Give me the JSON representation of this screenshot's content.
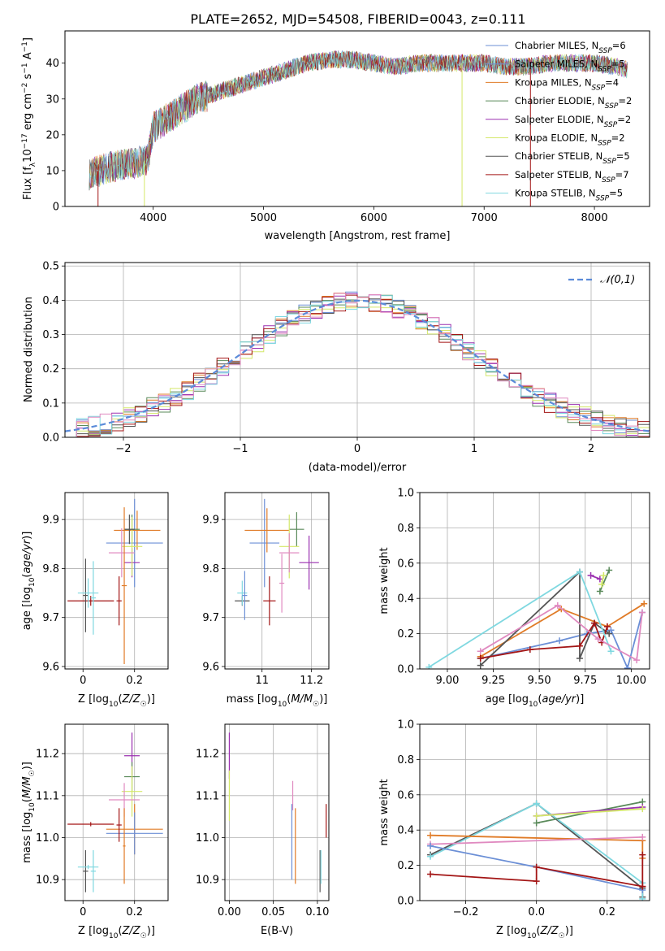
{
  "figure_title": "PLATE=2652, MJD=54508, FIBERID=0043, z=0.111",
  "colors": {
    "Chabrier MILES": "#6b8fd6",
    "Salpeter MILES": "#6b8fd6",
    "Kroupa MILES": "#e07b27",
    "Chabrier ELODIE": "#5a8a5a",
    "Salpeter ELODIE": "#9b30b0",
    "Kroupa ELODIE": "#d4e86a",
    "Chabrier STELIB": "#555555",
    "Salpeter STELIB": "#a31515",
    "Kroupa STELIB": "#7fd8e0",
    "pink": "#e08ac0",
    "gaussian": "#5b8bd9"
  },
  "chart_data": [
    {
      "id": "spectrum",
      "type": "line",
      "title": "PLATE=2652, MJD=54508, FIBERID=0043, z=0.111",
      "xlabel": "wavelength [Angstrom, rest frame]",
      "ylabel": "Flux [f_λ10^-17 erg cm^-2 s^-1 A^-1]",
      "xlim": [
        3200,
        8500
      ],
      "ylim": [
        0,
        49
      ],
      "xticks": [
        4000,
        5000,
        6000,
        7000,
        8000
      ],
      "yticks": [
        0,
        10,
        20,
        30,
        40
      ],
      "legend": [
        {
          "label": "Chabrier MILES, N_SSP=6",
          "color": "#6b8fd6"
        },
        {
          "label": "Salpeter MILES, N_SSP=5",
          "color": "#6b8fd6"
        },
        {
          "label": "Kroupa MILES, N_SSP=4",
          "color": "#e07b27"
        },
        {
          "label": "Chabrier ELODIE, N_SSP=2",
          "color": "#5a8a5a"
        },
        {
          "label": "Salpeter ELODIE, N_SSP=2",
          "color": "#9b30b0"
        },
        {
          "label": "Kroupa ELODIE, N_SSP=2",
          "color": "#d4e86a"
        },
        {
          "label": "Chabrier STELIB, N_SSP=5",
          "color": "#555555"
        },
        {
          "label": "Salpeter STELIB, N_SSP=7",
          "color": "#a31515"
        },
        {
          "label": "Kroupa STELIB, N_SSP=5",
          "color": "#7fd8e0"
        }
      ],
      "continuum": [
        [
          3420,
          9
        ],
        [
          3600,
          11
        ],
        [
          3800,
          12
        ],
        [
          3950,
          13
        ],
        [
          4000,
          22
        ],
        [
          4200,
          26
        ],
        [
          4400,
          30
        ],
        [
          4600,
          32
        ],
        [
          4800,
          34
        ],
        [
          5000,
          36
        ],
        [
          5200,
          38
        ],
        [
          5400,
          40
        ],
        [
          5600,
          41
        ],
        [
          5800,
          41
        ],
        [
          6000,
          40
        ],
        [
          6200,
          39
        ],
        [
          6400,
          40
        ],
        [
          6600,
          40
        ],
        [
          6800,
          40
        ],
        [
          7000,
          40
        ],
        [
          7200,
          39
        ],
        [
          7400,
          39
        ],
        [
          7600,
          40
        ],
        [
          7800,
          40
        ],
        [
          8000,
          40
        ],
        [
          8200,
          39
        ],
        [
          8300,
          38
        ]
      ],
      "drops": [
        {
          "x": 3500,
          "color": "#a31515"
        },
        {
          "x": 3920,
          "color": "#d4e86a"
        },
        {
          "x": 6800,
          "color": "#d4e86a"
        },
        {
          "x": 7420,
          "color": "#a31515"
        }
      ]
    },
    {
      "id": "residuals",
      "type": "bar",
      "xlabel": "(data-model)/error",
      "ylabel": "Normed distribution",
      "xlim": [
        -2.5,
        2.5
      ],
      "ylim": [
        0,
        0.51
      ],
      "xticks": [
        -2,
        -1,
        0,
        1,
        2
      ],
      "yticks": [
        0.0,
        0.1,
        0.2,
        0.3,
        0.4,
        0.5
      ],
      "series": [
        {
          "name": "𝒩(0,1)",
          "type": "gaussian",
          "mean": 0,
          "sigma": 1
        }
      ],
      "bin_width": 0.1,
      "histogram_colors": [
        "#6b8fd6",
        "#e07b27",
        "#5a8a5a",
        "#9b30b0",
        "#d4e86a",
        "#555555",
        "#a31515",
        "#7fd8e0",
        "#e08ac0"
      ]
    },
    {
      "id": "age_vs_Z",
      "type": "scatter",
      "xlabel": "Z [log10(Z/Z☉)]",
      "ylabel": "age  [log10(age/yr)]",
      "xlim": [
        -0.07,
        0.33
      ],
      "ylim": [
        9.595,
        9.955
      ],
      "xticks": [
        0.0,
        0.2
      ],
      "yticks": [
        9.6,
        9.7,
        9.8,
        9.9
      ],
      "points": [
        {
          "x": 0.2,
          "y": 9.852,
          "xerr": 0.11,
          "yerr": 0.09,
          "color": "#6b8fd6"
        },
        {
          "x": 0.21,
          "y": 9.878,
          "xerr": 0.09,
          "yerr": 0.04,
          "color": "#e07b27"
        },
        {
          "x": 0.19,
          "y": 9.88,
          "xerr": 0.03,
          "yerr": 0.03,
          "color": "#5a8a5a"
        },
        {
          "x": 0.19,
          "y": 9.812,
          "xerr": 0.03,
          "yerr": 0.03,
          "color": "#9b30b0"
        },
        {
          "x": 0.19,
          "y": 9.845,
          "xerr": 0.04,
          "yerr": 0.06,
          "color": "#d4e86a"
        },
        {
          "x": 0.18,
          "y": 9.88,
          "xerr": 0.02,
          "yerr": 0.03,
          "color": "#555555"
        },
        {
          "x": 0.15,
          "y": 9.832,
          "xerr": 0.05,
          "yerr": 0.05,
          "color": "#e08ac0"
        },
        {
          "x": 0.16,
          "y": 9.765,
          "xerr": 0.01,
          "yerr": 0.16,
          "color": "#e07b27"
        },
        {
          "x": 0.14,
          "y": 9.734,
          "xerr": 0.01,
          "yerr": 0.05,
          "color": "#a31515"
        },
        {
          "x": 0.03,
          "y": 9.734,
          "xerr": 0.09,
          "yerr": 0.01,
          "color": "#a31515"
        },
        {
          "x": 0.01,
          "y": 9.745,
          "xerr": 0.01,
          "yerr": 0.075,
          "color": "#555555"
        },
        {
          "x": 0.02,
          "y": 9.75,
          "xerr": 0.04,
          "yerr": 0.03,
          "color": "#7fd8e0"
        },
        {
          "x": 0.04,
          "y": 9.74,
          "xerr": 0.01,
          "yerr": 0.075,
          "color": "#7fd8e0"
        }
      ]
    },
    {
      "id": "age_vs_mass",
      "type": "scatter",
      "xlabel": "mass [log10(M/M☉)]",
      "ylabel": "",
      "xlim": [
        10.85,
        11.27
      ],
      "ylim": [
        9.595,
        9.955
      ],
      "xticks": [
        11.0,
        11.2
      ],
      "yticks": [
        9.6,
        9.7,
        9.8,
        9.9
      ],
      "points": [
        {
          "x": 11.01,
          "y": 9.852,
          "xerr": 0.06,
          "yerr": 0.09,
          "color": "#6b8fd6"
        },
        {
          "x": 11.02,
          "y": 9.878,
          "xerr": 0.09,
          "yerr": 0.045,
          "color": "#e07b27"
        },
        {
          "x": 11.14,
          "y": 9.88,
          "xerr": 0.03,
          "yerr": 0.035,
          "color": "#5a8a5a"
        },
        {
          "x": 11.19,
          "y": 9.812,
          "xerr": 0.04,
          "yerr": 0.055,
          "color": "#9b30b0"
        },
        {
          "x": 11.11,
          "y": 9.845,
          "xerr": 0.04,
          "yerr": 0.065,
          "color": "#d4e86a"
        },
        {
          "x": 11.11,
          "y": 9.832,
          "xerr": 0.04,
          "yerr": 0.04,
          "color": "#e08ac0"
        },
        {
          "x": 11.03,
          "y": 9.734,
          "xerr": 0.025,
          "yerr": 0.05,
          "color": "#a31515"
        },
        {
          "x": 11.08,
          "y": 9.77,
          "xerr": 0.01,
          "yerr": 0.06,
          "color": "#e08ac0"
        },
        {
          "x": 10.92,
          "y": 9.734,
          "xerr": 0.03,
          "yerr": 0.01,
          "color": "#555555"
        },
        {
          "x": 10.92,
          "y": 9.75,
          "xerr": 0.02,
          "yerr": 0.025,
          "color": "#7fd8e0"
        },
        {
          "x": 10.93,
          "y": 9.745,
          "xerr": 0.01,
          "yerr": 0.05,
          "color": "#6b8fd6"
        }
      ]
    },
    {
      "id": "massweight_vs_age",
      "type": "line",
      "xlabel": "age  [log10(age/yr)]",
      "ylabel": "mass weight",
      "xlim": [
        8.85,
        10.1
      ],
      "ylim": [
        0,
        1
      ],
      "xticks": [
        9.0,
        9.25,
        9.5,
        9.75,
        10.0
      ],
      "xticklabels": [
        "9.00",
        "9.25",
        "9.50",
        "9.75",
        "10.00"
      ],
      "yticks": [
        0.0,
        0.2,
        0.4,
        0.6,
        0.8,
        1.0
      ],
      "series": [
        {
          "color": "#6b8fd6",
          "x": [
            9.18,
            9.61,
            9.76,
            9.89,
            9.98,
            10.06
          ],
          "y": [
            0.06,
            0.16,
            0.2,
            0.22,
            0.005,
            0.32
          ]
        },
        {
          "color": "#e07b27",
          "x": [
            9.18,
            9.62,
            9.87,
            10.07
          ],
          "y": [
            0.07,
            0.34,
            0.24,
            0.37
          ]
        },
        {
          "color": "#5a8a5a",
          "x": [
            9.83,
            9.88
          ],
          "y": [
            0.44,
            0.56
          ]
        },
        {
          "color": "#9b30b0",
          "x": [
            9.78,
            9.83
          ],
          "y": [
            0.53,
            0.51
          ]
        },
        {
          "color": "#d4e86a",
          "x": [
            9.84,
            9.85
          ],
          "y": [
            0.48,
            0.53
          ]
        },
        {
          "color": "#555555",
          "x": [
            9.18,
            9.72,
            9.72,
            9.8,
            9.88
          ],
          "y": [
            0.02,
            0.55,
            0.06,
            0.26,
            0.2
          ]
        },
        {
          "color": "#a31515",
          "x": [
            9.18,
            9.45,
            9.72,
            9.8,
            9.84,
            9.87
          ],
          "y": [
            0.06,
            0.11,
            0.13,
            0.26,
            0.15,
            0.24
          ]
        },
        {
          "color": "#7fd8e0",
          "x": [
            8.9,
            9.72,
            9.89
          ],
          "y": [
            0.01,
            0.55,
            0.1
          ]
        },
        {
          "color": "#e08ac0",
          "x": [
            9.18,
            9.6,
            9.82,
            10.03,
            10.06
          ],
          "y": [
            0.1,
            0.36,
            0.17,
            0.05,
            0.32
          ]
        }
      ]
    },
    {
      "id": "mass_vs_Z",
      "type": "scatter",
      "xlabel": "Z [log10(Z/Z☉)]",
      "ylabel": "mass [log10(M/M☉)]",
      "xlim": [
        -0.07,
        0.33
      ],
      "ylim": [
        10.85,
        11.27
      ],
      "xticks": [
        0.0,
        0.2
      ],
      "yticks": [
        10.9,
        11.0,
        11.1,
        11.2
      ],
      "points": [
        {
          "x": 0.19,
          "y": 11.195,
          "xerr": 0.03,
          "yerr": 0.055,
          "color": "#9b30b0"
        },
        {
          "x": 0.19,
          "y": 11.145,
          "xerr": 0.03,
          "yerr": 0.035,
          "color": "#5a8a5a"
        },
        {
          "x": 0.19,
          "y": 11.11,
          "xerr": 0.04,
          "yerr": 0.06,
          "color": "#d4e86a"
        },
        {
          "x": 0.16,
          "y": 11.09,
          "xerr": 0.06,
          "yerr": 0.04,
          "color": "#e08ac0"
        },
        {
          "x": 0.2,
          "y": 11.02,
          "xerr": 0.11,
          "yerr": 0.06,
          "color": "#e07b27"
        },
        {
          "x": 0.2,
          "y": 11.01,
          "xerr": 0.11,
          "yerr": 0.05,
          "color": "#6b8fd6"
        },
        {
          "x": 0.16,
          "y": 10.98,
          "xerr": 0.005,
          "yerr": 0.09,
          "color": "#e07b27"
        },
        {
          "x": 0.14,
          "y": 11.03,
          "xerr": 0.01,
          "yerr": 0.04,
          "color": "#a31515"
        },
        {
          "x": 0.03,
          "y": 11.032,
          "xerr": 0.09,
          "yerr": 0.005,
          "color": "#a31515"
        },
        {
          "x": 0.01,
          "y": 10.92,
          "xerr": 0.01,
          "yerr": 0.05,
          "color": "#555555"
        },
        {
          "x": 0.02,
          "y": 10.93,
          "xerr": 0.04,
          "yerr": 0.005,
          "color": "#7fd8e0"
        },
        {
          "x": 0.04,
          "y": 10.92,
          "xerr": 0.01,
          "yerr": 0.05,
          "color": "#7fd8e0"
        }
      ]
    },
    {
      "id": "mass_vs_ebv",
      "type": "scatter",
      "xlabel": "E(B-V)",
      "ylabel": "",
      "xlim": [
        -0.005,
        0.113
      ],
      "ylim": [
        10.85,
        11.27
      ],
      "xticks": [
        0.0,
        0.05,
        0.1
      ],
      "xticklabels": [
        "0.00",
        "0.05",
        "0.10"
      ],
      "yticks": [
        10.9,
        11.0,
        11.1,
        11.2
      ],
      "points": [
        {
          "x": 0.0,
          "y": 11.195,
          "xerr": 0,
          "yerr": 0.055,
          "color": "#9b30b0"
        },
        {
          "x": 0.0,
          "y": 11.1,
          "xerr": 0,
          "yerr": 0.06,
          "color": "#d4e86a"
        },
        {
          "x": 0.072,
          "y": 11.1,
          "xerr": 0,
          "yerr": 0.035,
          "color": "#e08ac0"
        },
        {
          "x": 0.071,
          "y": 10.99,
          "xerr": 0,
          "yerr": 0.09,
          "color": "#6b8fd6"
        },
        {
          "x": 0.075,
          "y": 10.98,
          "xerr": 0,
          "yerr": 0.09,
          "color": "#e07b27"
        },
        {
          "x": 0.103,
          "y": 10.92,
          "xerr": 0,
          "yerr": 0.05,
          "color": "#555555"
        },
        {
          "x": 0.104,
          "y": 10.93,
          "xerr": 0,
          "yerr": 0.04,
          "color": "#7fd8e0"
        },
        {
          "x": 0.11,
          "y": 11.04,
          "xerr": 0,
          "yerr": 0.04,
          "color": "#a31515"
        }
      ]
    },
    {
      "id": "massweight_vs_Z",
      "type": "line",
      "xlabel": "Z [log10(Z/Z☉)]",
      "ylabel": "mass weight",
      "xlim": [
        -0.33,
        0.32
      ],
      "ylim": [
        0,
        1
      ],
      "xticks": [
        -0.2,
        0.0,
        0.2
      ],
      "xticklabels": [
        "−0.2",
        "0.0",
        "0.2"
      ],
      "yticks": [
        0.0,
        0.2,
        0.4,
        0.6,
        0.8,
        1.0
      ],
      "series": [
        {
          "color": "#555555",
          "x": [
            -0.3,
            0.0,
            0.3,
            0.3
          ],
          "y": [
            0.26,
            0.55,
            0.07,
            0.02
          ]
        },
        {
          "color": "#7fd8e0",
          "x": [
            -0.3,
            0.0,
            0.3,
            0.3
          ],
          "y": [
            0.25,
            0.55,
            0.1,
            0.01
          ]
        },
        {
          "color": "#5a8a5a",
          "x": [
            0.0,
            0.3
          ],
          "y": [
            0.44,
            0.56
          ]
        },
        {
          "color": "#9b30b0",
          "x": [
            0.0,
            0.3
          ],
          "y": [
            0.48,
            0.53
          ]
        },
        {
          "color": "#d4e86a",
          "x": [
            0.0,
            0.3
          ],
          "y": [
            0.48,
            0.52
          ]
        },
        {
          "color": "#e07b27",
          "x": [
            -0.3,
            0.3,
            0.3
          ],
          "y": [
            0.37,
            0.34,
            0.24
          ]
        },
        {
          "color": "#e08ac0",
          "x": [
            -0.3,
            0.3
          ],
          "y": [
            0.32,
            0.36
          ]
        },
        {
          "color": "#6b8fd6",
          "x": [
            -0.3,
            0.0,
            0.3
          ],
          "y": [
            0.31,
            0.19,
            0.06
          ]
        },
        {
          "color": "#a31515",
          "x": [
            -0.3,
            0.0,
            0.0,
            0.3,
            0.3,
            0.3
          ],
          "y": [
            0.15,
            0.11,
            0.19,
            0.08,
            0.26,
            0.08
          ]
        }
      ]
    }
  ]
}
